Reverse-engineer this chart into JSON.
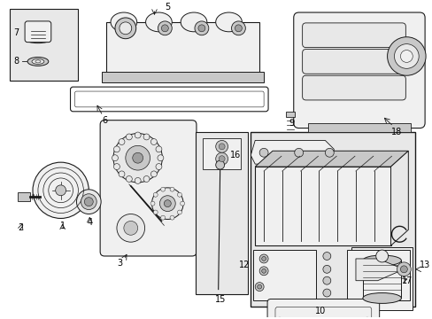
{
  "background_color": "#ffffff",
  "line_color": "#1a1a1a",
  "text_color": "#000000",
  "fig_width": 4.89,
  "fig_height": 3.6,
  "dpi": 100,
  "gray_bg": "#e8e8e8",
  "light_gray": "#f0f0f0",
  "mid_gray": "#c8c8c8",
  "dark_gray": "#a0a0a0"
}
